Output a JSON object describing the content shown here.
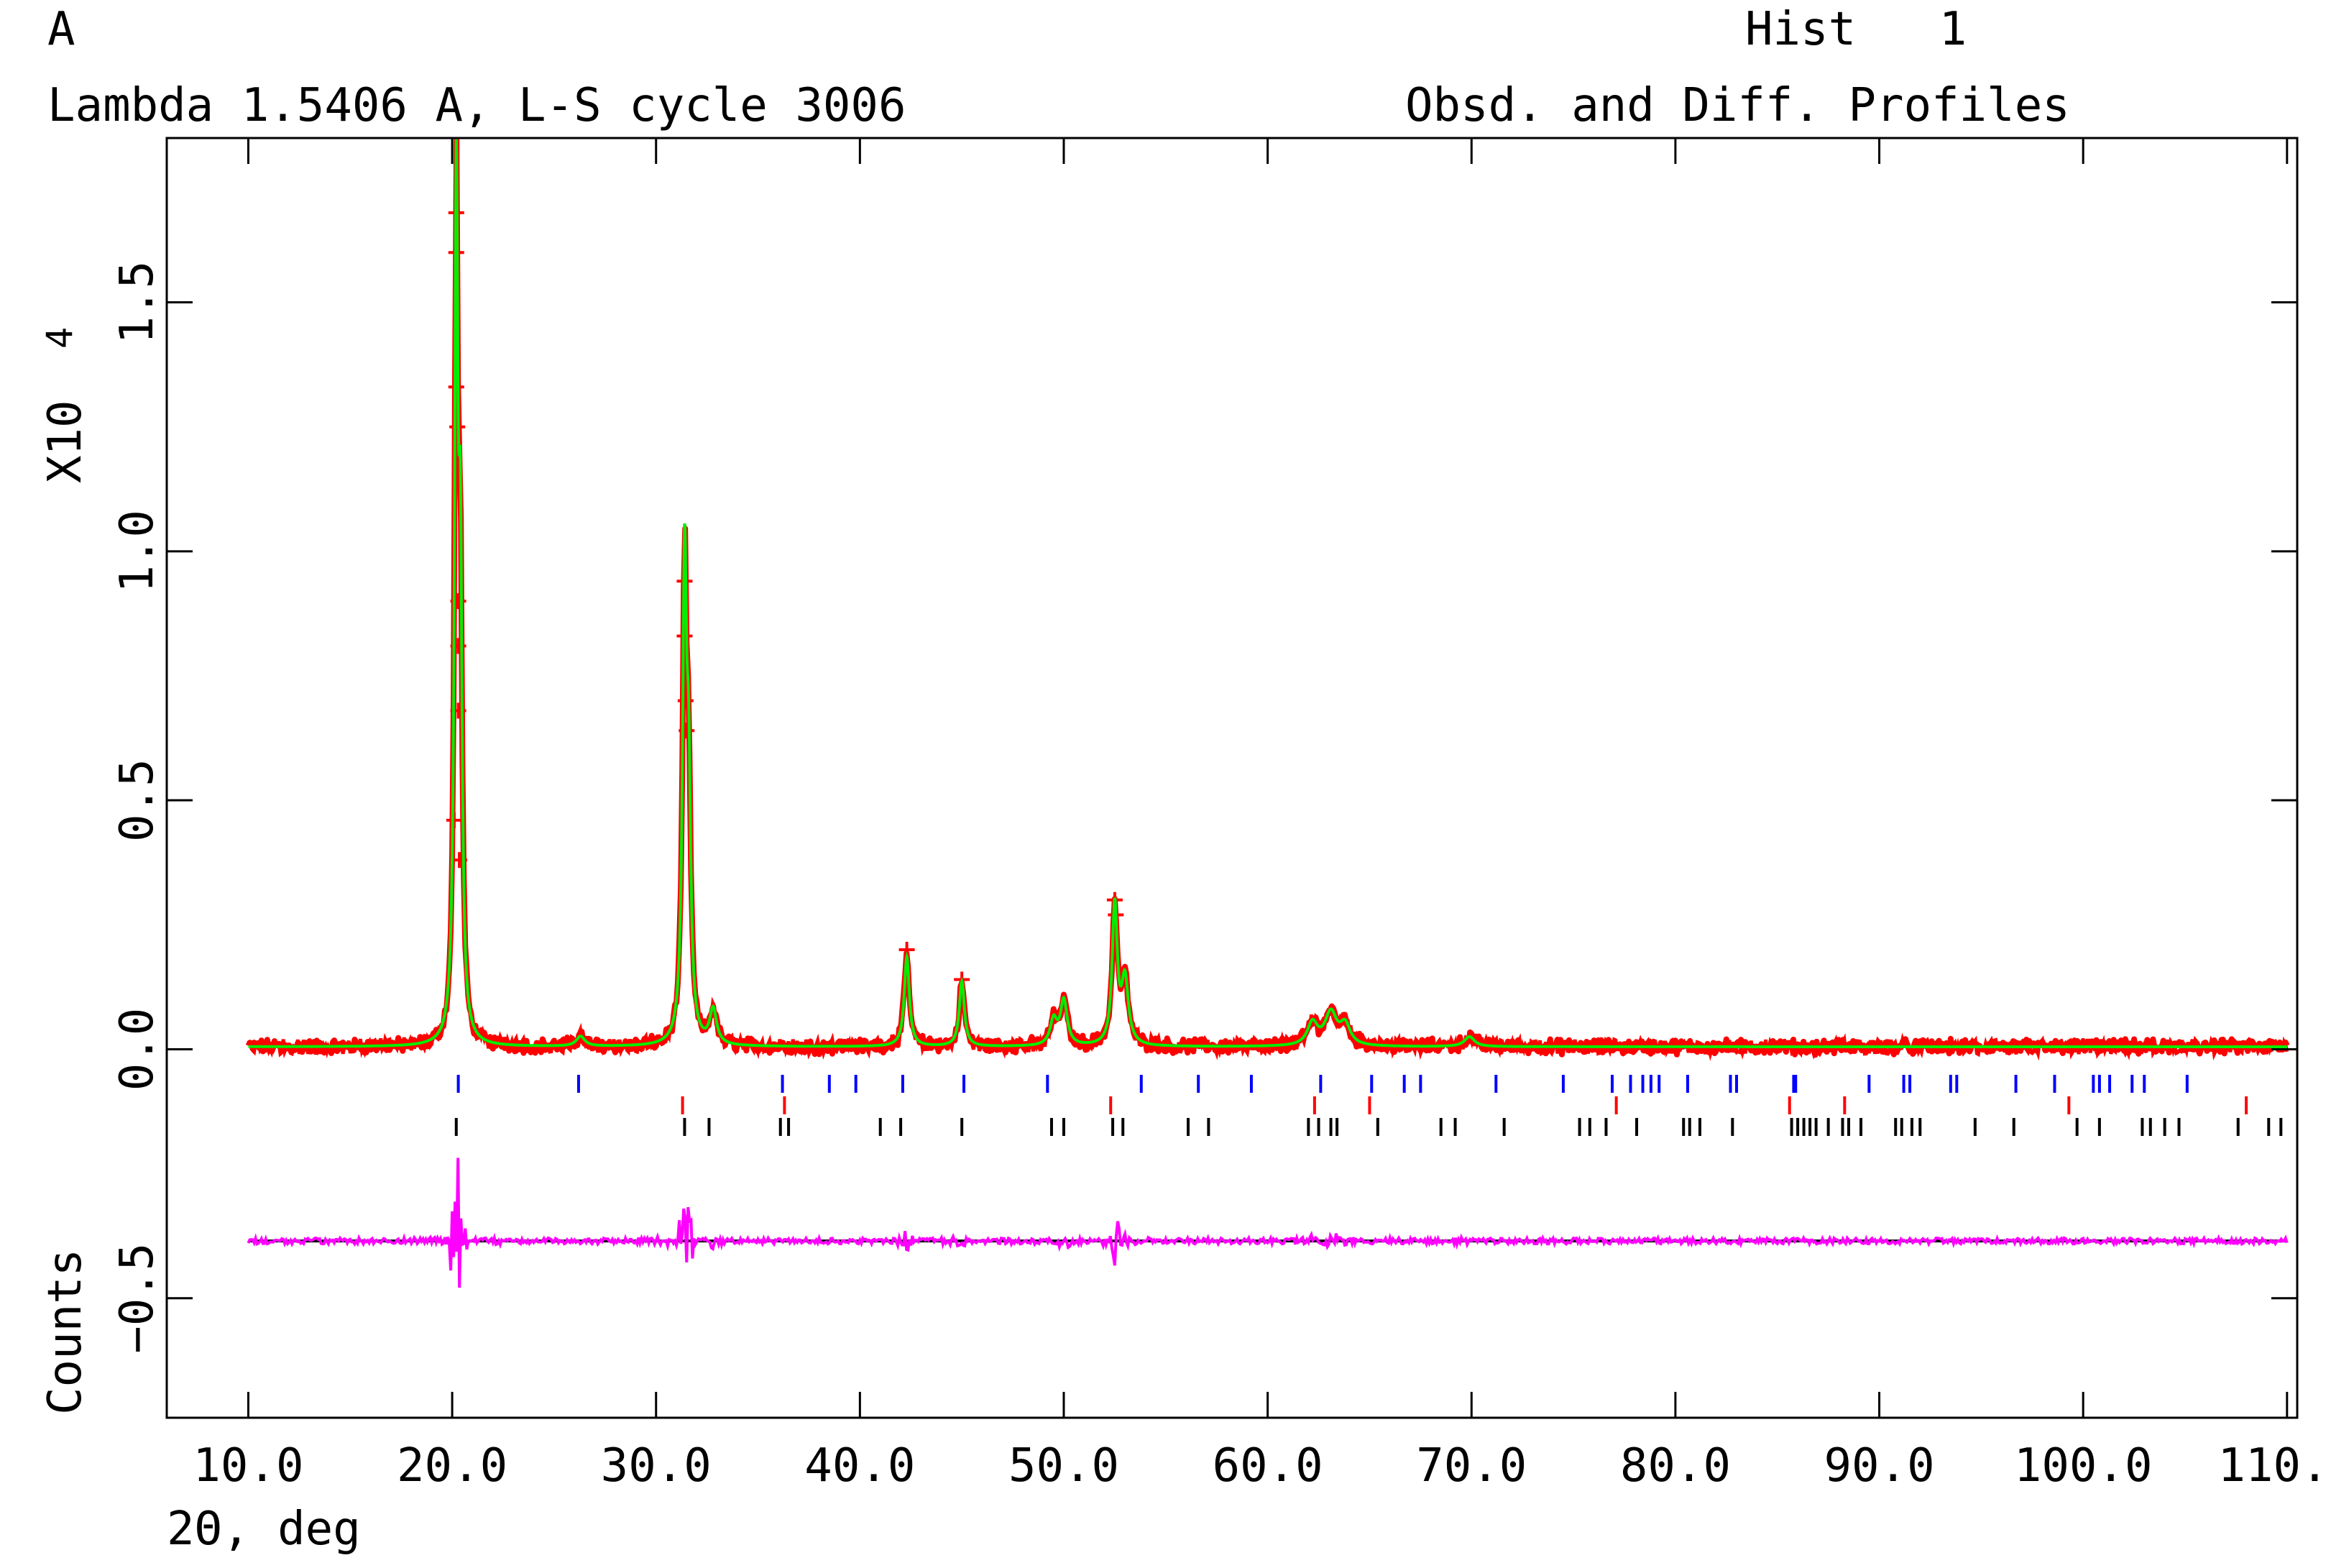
{
  "header": {
    "panel_letter": "A",
    "line1": "Lambda 1.5406 A, L-S cycle 3006",
    "hist_label": "Hist   1",
    "line2_right": "Obsd. and Diff. Profiles"
  },
  "chart_data": {
    "type": "line",
    "xlabel": "2Θ, deg",
    "ylabel": "Counts",
    "y_scale_label": "X10",
    "y_scale_exponent": "4",
    "xlim": [
      6.0,
      110.5
    ],
    "ylim": [
      -0.74,
      1.83
    ],
    "x_ticks": [
      10.0,
      20.0,
      30.0,
      40.0,
      50.0,
      60.0,
      70.0,
      80.0,
      90.0,
      100.0,
      110.0
    ],
    "x_tick_labels": [
      "10.0",
      "20.0",
      "30.0",
      "40.0",
      "50.0",
      "60.0",
      "70.0",
      "80.0",
      "90.0",
      "100.0",
      "110.0"
    ],
    "y_ticks": [
      -0.5,
      0.0,
      0.5,
      1.0,
      1.5
    ],
    "y_tick_labels": [
      "−0.5",
      "0.0",
      "0.5",
      "1.0",
      "1.5"
    ],
    "x_range": [
      10.0,
      110.0
    ],
    "background": 0.005,
    "diff_offset": -0.385,
    "colors": {
      "observed": "#ff0000",
      "calculated": "#00ee00",
      "difference": "#ff00ff",
      "zero_line": "#000000",
      "ticks_phase1": "#0000ff",
      "ticks_phase2": "#ff0000",
      "ticks_phase3": "#000000"
    },
    "peaks": [
      {
        "x": 20.2,
        "h": 1.66,
        "w": 0.1
      },
      {
        "x": 20.4,
        "h": 0.85,
        "w": 0.1
      },
      {
        "x": 26.3,
        "h": 0.02,
        "w": 0.25
      },
      {
        "x": 31.4,
        "h": 0.93,
        "w": 0.12
      },
      {
        "x": 31.6,
        "h": 0.45,
        "w": 0.12
      },
      {
        "x": 32.8,
        "h": 0.07,
        "w": 0.2
      },
      {
        "x": 42.3,
        "h": 0.18,
        "w": 0.15
      },
      {
        "x": 45.0,
        "h": 0.13,
        "w": 0.15
      },
      {
        "x": 49.5,
        "h": 0.05,
        "w": 0.2
      },
      {
        "x": 50.0,
        "h": 0.09,
        "w": 0.2
      },
      {
        "x": 52.5,
        "h": 0.28,
        "w": 0.15
      },
      {
        "x": 53.0,
        "h": 0.13,
        "w": 0.2
      },
      {
        "x": 62.2,
        "h": 0.045,
        "w": 0.3
      },
      {
        "x": 63.1,
        "h": 0.065,
        "w": 0.35
      },
      {
        "x": 63.8,
        "h": 0.04,
        "w": 0.3
      },
      {
        "x": 69.9,
        "h": 0.02,
        "w": 0.3
      }
    ],
    "observed_marked_points": [
      {
        "x": 20.2,
        "y": 1.68
      },
      {
        "x": 20.2,
        "y": 1.6
      },
      {
        "x": 20.2,
        "y": 1.33
      },
      {
        "x": 20.25,
        "y": 1.25
      },
      {
        "x": 20.3,
        "y": 0.9
      },
      {
        "x": 20.3,
        "y": 0.81
      },
      {
        "x": 20.3,
        "y": 0.68
      },
      {
        "x": 20.1,
        "y": 0.46
      },
      {
        "x": 20.35,
        "y": 0.38
      },
      {
        "x": 31.4,
        "y": 0.94
      },
      {
        "x": 31.4,
        "y": 0.83
      },
      {
        "x": 31.45,
        "y": 0.7
      },
      {
        "x": 31.5,
        "y": 0.64
      },
      {
        "x": 42.3,
        "y": 0.2
      },
      {
        "x": 45.0,
        "y": 0.14
      },
      {
        "x": 52.5,
        "y": 0.3
      },
      {
        "x": 52.55,
        "y": 0.27
      }
    ],
    "reflection_ticks": [
      {
        "phase": 1,
        "positions": [
          20.3,
          26.2,
          36.2,
          38.5,
          39.8,
          42.1,
          45.1,
          49.2,
          53.8,
          56.6,
          59.2,
          62.6,
          65.1,
          66.7,
          67.5,
          71.2,
          74.5,
          76.9,
          77.8,
          78.4,
          78.8,
          79.2,
          80.6,
          82.7,
          83.0,
          85.8,
          85.9,
          89.5,
          91.2,
          91.5,
          93.5,
          93.8,
          96.7,
          98.6,
          100.5,
          100.8,
          101.3,
          102.4,
          103.0,
          105.1
        ]
      },
      {
        "phase": 2,
        "positions": [
          31.3,
          36.3,
          52.3,
          62.3,
          65.0,
          77.1,
          85.6,
          88.3,
          99.3,
          108.0
        ]
      },
      {
        "phase": 3,
        "positions": [
          20.2,
          31.4,
          32.6,
          36.1,
          36.5,
          41.0,
          42.0,
          45.0,
          49.4,
          50.0,
          52.4,
          52.9,
          56.1,
          57.1,
          62.0,
          62.5,
          63.1,
          63.4,
          65.4,
          68.5,
          69.2,
          71.6,
          75.3,
          75.8,
          76.6,
          78.1,
          80.4,
          80.7,
          81.2,
          82.8,
          85.7,
          86.0,
          86.3,
          86.6,
          86.9,
          87.5,
          88.2,
          88.5,
          89.1,
          90.8,
          91.1,
          91.6,
          92.0,
          94.7,
          96.6,
          99.7,
          100.8,
          102.9,
          103.3,
          104.0,
          104.7,
          107.6,
          109.1,
          109.7
        ]
      }
    ]
  }
}
